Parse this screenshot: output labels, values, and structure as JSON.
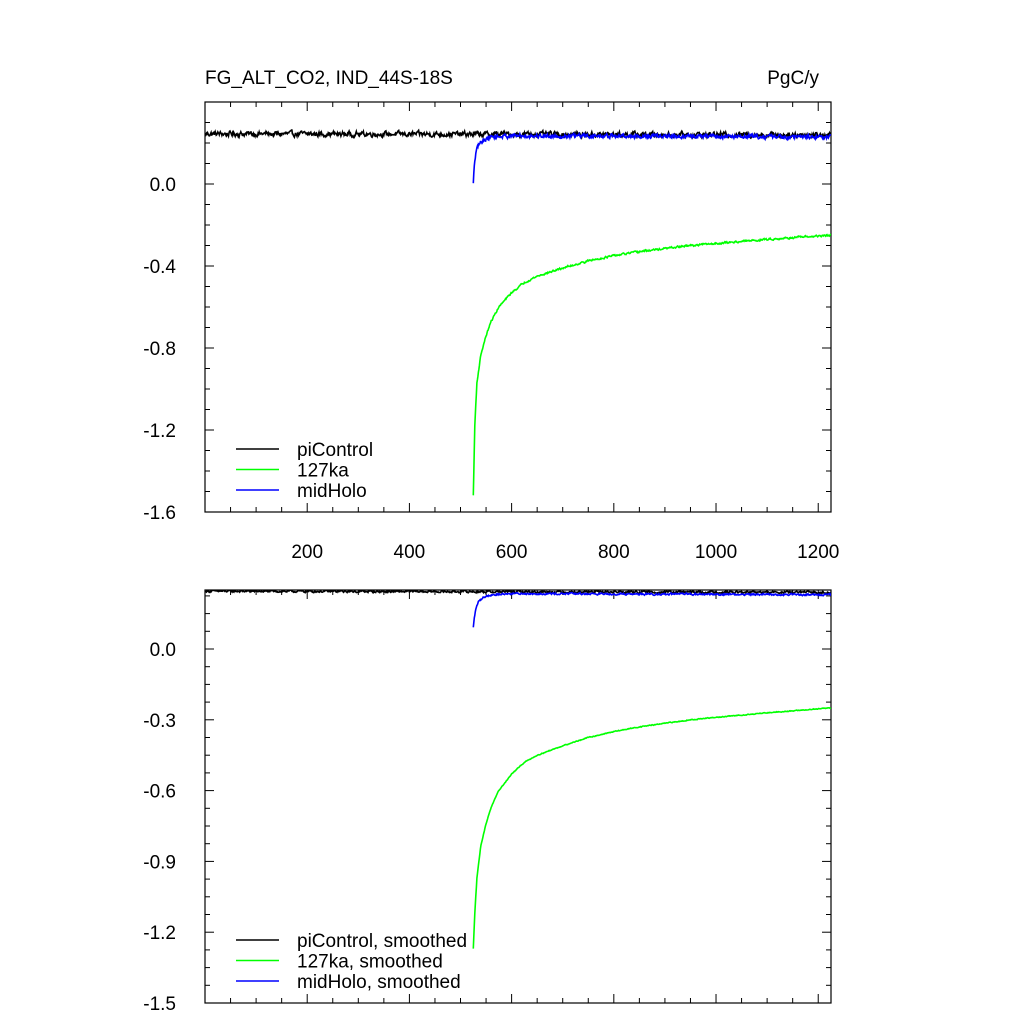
{
  "title_left": "FG_ALT_CO2, IND_44S-18S",
  "title_right": "PgC/y",
  "colors": {
    "piControl": "#000000",
    "127ka": "#00ff00",
    "midHolo": "#0000ff",
    "axis": "#000000"
  },
  "chart_data": [
    {
      "type": "line",
      "name": "raw",
      "title": "FG_ALT_CO2, IND_44S-18S",
      "units": "PgC/y",
      "xlim": [
        0,
        1225
      ],
      "ylim": [
        -1.6,
        0.4
      ],
      "xticks": [
        200,
        400,
        600,
        800,
        1000,
        1200
      ],
      "xtick_labels": [
        "200",
        "400",
        "600",
        "800",
        "1000",
        "1200"
      ],
      "yticks": [
        0.0,
        -0.4,
        -0.8,
        -1.2,
        -1.6
      ],
      "ytick_labels": [
        "0.0",
        "-0.4",
        "-0.8",
        "-1.2",
        "-1.6"
      ],
      "legend": [
        "piControl",
        "127ka",
        "midHolo"
      ],
      "legend_position": "bottom-left",
      "series": [
        {
          "name": "piControl",
          "color": "#000000",
          "noise": 0.022,
          "x_range": [
            1,
            1225
          ],
          "x": [
            1,
            1225
          ],
          "y": [
            0.245,
            0.24
          ]
        },
        {
          "name": "127ka",
          "color": "#00ff00",
          "noise": 0.008,
          "x_range": [
            525,
            1225
          ],
          "x": [
            525,
            528,
            532,
            540,
            550,
            560,
            575,
            600,
            625,
            650,
            700,
            750,
            800,
            850,
            900,
            950,
            1000,
            1100,
            1225
          ],
          "y": [
            -1.52,
            -1.18,
            -0.97,
            -0.83,
            -0.74,
            -0.67,
            -0.6,
            -0.53,
            -0.48,
            -0.45,
            -0.41,
            -0.375,
            -0.35,
            -0.33,
            -0.315,
            -0.3,
            -0.29,
            -0.27,
            -0.25
          ]
        },
        {
          "name": "midHolo",
          "color": "#0000ff",
          "noise": 0.018,
          "x_range": [
            525,
            1225
          ],
          "x": [
            525,
            527,
            530,
            535,
            545,
            560,
            600,
            1225
          ],
          "y": [
            0.0,
            0.09,
            0.15,
            0.19,
            0.215,
            0.23,
            0.235,
            0.23
          ]
        }
      ]
    },
    {
      "type": "line",
      "name": "smoothed",
      "title": "",
      "xlim": [
        0,
        1225
      ],
      "ylim": [
        -1.5,
        0.25
      ],
      "xticks": [
        200,
        400,
        600,
        800,
        1000,
        1200
      ],
      "xtick_labels": [
        "",
        "",
        "",
        "",
        "",
        ""
      ],
      "yticks": [
        0.0,
        -0.3,
        -0.6,
        -0.9,
        -1.2,
        -1.5
      ],
      "ytick_labels": [
        "0.0",
        "-0.3",
        "-0.6",
        "-0.9",
        "-1.2",
        "-1.5"
      ],
      "legend": [
        "piControl, smoothed",
        "127ka, smoothed",
        "midHolo, smoothed"
      ],
      "legend_position": "bottom-left",
      "series": [
        {
          "name": "piControl, smoothed",
          "color": "#000000",
          "noise": 0.008,
          "x_range": [
            1,
            1225
          ],
          "x": [
            1,
            1225
          ],
          "y": [
            0.245,
            0.24
          ]
        },
        {
          "name": "127ka, smoothed",
          "color": "#00ff00",
          "noise": 0.003,
          "x_range": [
            525,
            1225
          ],
          "x": [
            525,
            528,
            532,
            540,
            550,
            560,
            575,
            600,
            625,
            650,
            700,
            750,
            800,
            850,
            900,
            950,
            1000,
            1100,
            1225
          ],
          "y": [
            -1.27,
            -1.12,
            -0.97,
            -0.83,
            -0.74,
            -0.67,
            -0.6,
            -0.53,
            -0.48,
            -0.45,
            -0.41,
            -0.375,
            -0.35,
            -0.33,
            -0.315,
            -0.3,
            -0.29,
            -0.27,
            -0.25
          ]
        },
        {
          "name": "midHolo, smoothed",
          "color": "#0000ff",
          "noise": 0.007,
          "x_range": [
            525,
            1225
          ],
          "x": [
            525,
            527,
            530,
            535,
            545,
            560,
            600,
            1225
          ],
          "y": [
            0.09,
            0.13,
            0.17,
            0.2,
            0.22,
            0.23,
            0.235,
            0.23
          ]
        }
      ]
    }
  ]
}
